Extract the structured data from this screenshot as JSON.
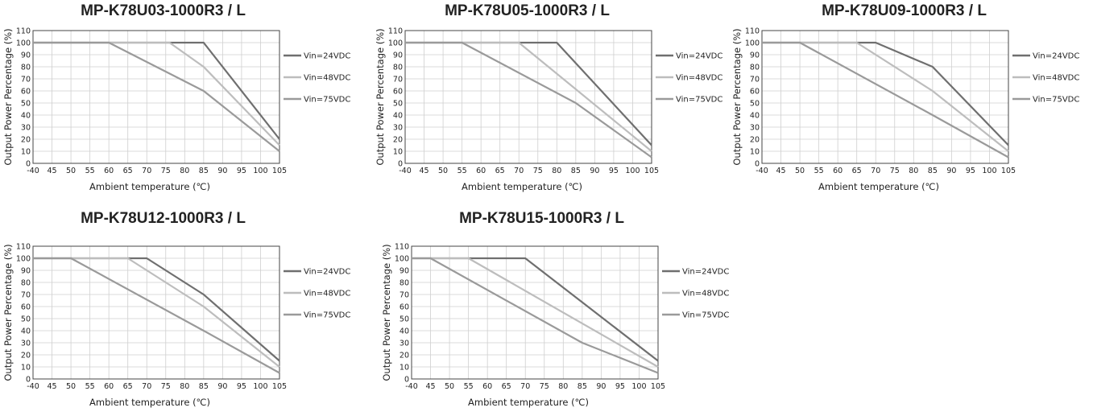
{
  "colors": {
    "vin24": "#6f6f6f",
    "vin48": "#bdbdbd",
    "vin75": "#9a9a9a",
    "grid": "#cfcfcf",
    "axis": "#444444"
  },
  "chart_data": [
    {
      "type": "line",
      "title": "MP-K78U03-1000R3 / L",
      "xlabel": "Ambient temperature (℃)",
      "ylabel": "Output Power Percentage (%)",
      "xticks": [
        "-40",
        "45",
        "50",
        "55",
        "60",
        "65",
        "70",
        "75",
        "80",
        "85",
        "90",
        "95",
        "100",
        "105"
      ],
      "yticks": [
        "0",
        "10",
        "20",
        "30",
        "40",
        "50",
        "60",
        "70",
        "80",
        "90",
        "100",
        "110"
      ],
      "xlim": [
        40,
        105
      ],
      "ylim": [
        0,
        110
      ],
      "grid": true,
      "legend": "right",
      "series": [
        {
          "name": "Vin=24VDC",
          "color": "#6f6f6f",
          "points": [
            [
              40,
              100
            ],
            [
              85,
              100
            ],
            [
              105,
              20
            ]
          ]
        },
        {
          "name": "Vin=48VDC",
          "color": "#bdbdbd",
          "points": [
            [
              40,
              100
            ],
            [
              76,
              100
            ],
            [
              85,
              80
            ],
            [
              105,
              15
            ]
          ]
        },
        {
          "name": "Vin=75VDC",
          "color": "#9a9a9a",
          "points": [
            [
              40,
              100
            ],
            [
              60,
              100
            ],
            [
              85,
              60
            ],
            [
              105,
              10
            ]
          ]
        }
      ]
    },
    {
      "type": "line",
      "title": "MP-K78U05-1000R3 / L",
      "xlabel": "Ambient temperature (℃)",
      "ylabel": "Output Power Percentage (%)",
      "xticks": [
        "-40",
        "45",
        "50",
        "55",
        "60",
        "65",
        "70",
        "75",
        "80",
        "85",
        "90",
        "95",
        "100",
        "105"
      ],
      "yticks": [
        "0",
        "10",
        "20",
        "30",
        "40",
        "50",
        "60",
        "70",
        "80",
        "90",
        "100",
        "110"
      ],
      "xlim": [
        40,
        105
      ],
      "ylim": [
        0,
        110
      ],
      "grid": true,
      "legend": "right",
      "series": [
        {
          "name": "Vin=24VDC",
          "color": "#6f6f6f",
          "points": [
            [
              40,
              100
            ],
            [
              80,
              100
            ],
            [
              105,
              15
            ]
          ]
        },
        {
          "name": "Vin=48VDC",
          "color": "#bdbdbd",
          "points": [
            [
              40,
              100
            ],
            [
              70,
              100
            ],
            [
              105,
              10
            ]
          ]
        },
        {
          "name": "Vin=75VDC",
          "color": "#9a9a9a",
          "points": [
            [
              40,
              100
            ],
            [
              55,
              100
            ],
            [
              85,
              50
            ],
            [
              105,
              5
            ]
          ]
        }
      ]
    },
    {
      "type": "line",
      "title": "MP-K78U09-1000R3 / L",
      "xlabel": "Ambient temperature (℃)",
      "ylabel": "Output Power Percentage (%)",
      "xticks": [
        "-40",
        "45",
        "50",
        "55",
        "60",
        "65",
        "70",
        "75",
        "80",
        "85",
        "90",
        "95",
        "100",
        "105"
      ],
      "yticks": [
        "0",
        "10",
        "20",
        "30",
        "40",
        "50",
        "60",
        "70",
        "80",
        "90",
        "100",
        "110"
      ],
      "xlim": [
        40,
        105
      ],
      "ylim": [
        0,
        110
      ],
      "grid": true,
      "legend": "right",
      "series": [
        {
          "name": "Vin=24VDC",
          "color": "#6f6f6f",
          "points": [
            [
              40,
              100
            ],
            [
              70,
              100
            ],
            [
              85,
              80
            ],
            [
              105,
              15
            ]
          ]
        },
        {
          "name": "Vin=48VDC",
          "color": "#bdbdbd",
          "points": [
            [
              40,
              100
            ],
            [
              65,
              100
            ],
            [
              85,
              60
            ],
            [
              105,
              10
            ]
          ]
        },
        {
          "name": "Vin=75VDC",
          "color": "#9a9a9a",
          "points": [
            [
              40,
              100
            ],
            [
              50,
              100
            ],
            [
              85,
              40
            ],
            [
              105,
              5
            ]
          ]
        }
      ]
    },
    {
      "type": "line",
      "title": "MP-K78U12-1000R3 / L",
      "xlabel": "Ambient temperature (℃)",
      "ylabel": "Output Power Percentage (%)",
      "xticks": [
        "-40",
        "45",
        "50",
        "55",
        "60",
        "65",
        "70",
        "75",
        "80",
        "85",
        "90",
        "95",
        "100",
        "105"
      ],
      "yticks": [
        "0",
        "10",
        "20",
        "30",
        "40",
        "50",
        "60",
        "70",
        "80",
        "90",
        "100",
        "110"
      ],
      "xlim": [
        40,
        105
      ],
      "ylim": [
        0,
        110
      ],
      "grid": true,
      "legend": "right",
      "series": [
        {
          "name": "Vin=24VDC",
          "color": "#6f6f6f",
          "points": [
            [
              40,
              100
            ],
            [
              70,
              100
            ],
            [
              85,
              70
            ],
            [
              105,
              15
            ]
          ]
        },
        {
          "name": "Vin=48VDC",
          "color": "#bdbdbd",
          "points": [
            [
              40,
              100
            ],
            [
              65,
              100
            ],
            [
              85,
              60
            ],
            [
              105,
              10
            ]
          ]
        },
        {
          "name": "Vin=75VDC",
          "color": "#9a9a9a",
          "points": [
            [
              40,
              100
            ],
            [
              50,
              100
            ],
            [
              85,
              40
            ],
            [
              105,
              5
            ]
          ]
        }
      ]
    },
    {
      "type": "line",
      "title": "MP-K78U15-1000R3 / L",
      "xlabel": "Ambient temperature (℃)",
      "ylabel": "Output Power Percentage (%)",
      "xticks": [
        "-40",
        "45",
        "50",
        "55",
        "60",
        "65",
        "70",
        "75",
        "80",
        "85",
        "90",
        "95",
        "100",
        "105"
      ],
      "yticks": [
        "0",
        "10",
        "20",
        "30",
        "40",
        "50",
        "60",
        "70",
        "80",
        "90",
        "100",
        "110"
      ],
      "xlim": [
        40,
        105
      ],
      "ylim": [
        0,
        110
      ],
      "grid": true,
      "legend": "right",
      "series": [
        {
          "name": "Vin=24VDC",
          "color": "#6f6f6f",
          "points": [
            [
              40,
              100
            ],
            [
              70,
              100
            ],
            [
              105,
              15
            ]
          ]
        },
        {
          "name": "Vin=48VDC",
          "color": "#bdbdbd",
          "points": [
            [
              40,
              100
            ],
            [
              55,
              100
            ],
            [
              105,
              10
            ]
          ]
        },
        {
          "name": "Vin=75VDC",
          "color": "#9a9a9a",
          "points": [
            [
              40,
              100
            ],
            [
              45,
              100
            ],
            [
              85,
              30
            ],
            [
              105,
              5
            ]
          ]
        }
      ]
    }
  ]
}
